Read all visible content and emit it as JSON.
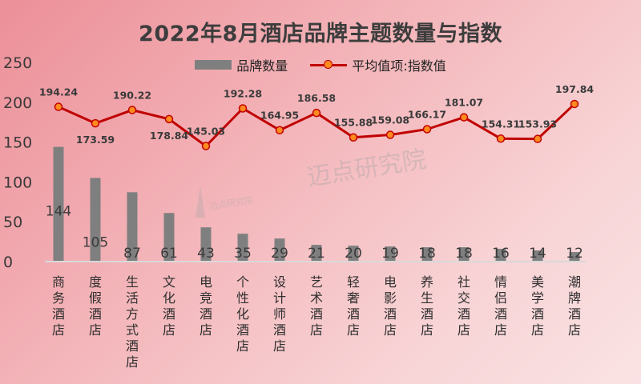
{
  "chart_data": {
    "type": "bar",
    "title": "2022年8月酒店品牌主题数量与指数",
    "categories": [
      "商务酒店",
      "度假酒店",
      "生活方式酒店",
      "文化酒店",
      "电竞酒店",
      "个性化酒店",
      "设计师酒店",
      "艺术酒店",
      "轻奢酒店",
      "电影酒店",
      "养生酒店",
      "社交酒店",
      "情侣酒店",
      "美学酒店",
      "潮牌酒店"
    ],
    "series": [
      {
        "name": "品牌数量",
        "type": "bar",
        "color": "#7f7f7f",
        "values": [
          144,
          105,
          87,
          61,
          43,
          35,
          29,
          21,
          20,
          19,
          18,
          18,
          16,
          14,
          12
        ]
      },
      {
        "name": "平均值项:指数值",
        "type": "line",
        "color": "#c00000",
        "marker": "#ff8a1f",
        "values": [
          194.24,
          173.59,
          190.22,
          178.84,
          145.03,
          192.28,
          164.95,
          186.58,
          155.88,
          159.08,
          166.17,
          181.07,
          154.31,
          153.93,
          197.84
        ]
      }
    ],
    "y_ticks": [
      0,
      50,
      100,
      150,
      200,
      250
    ],
    "ylim": [
      0,
      250
    ],
    "xlabel": "",
    "ylabel": "",
    "legend": "top",
    "grid": false
  },
  "watermark": {
    "text_large": "迈点研究院",
    "text_small": "迈点研究院"
  }
}
